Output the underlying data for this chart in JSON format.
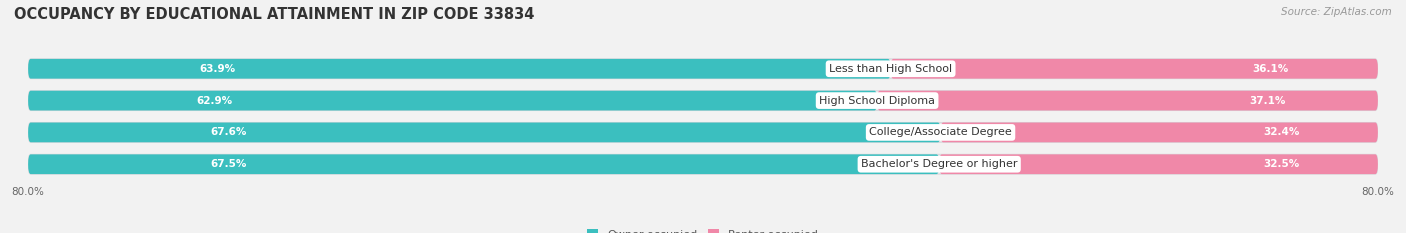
{
  "title": "OCCUPANCY BY EDUCATIONAL ATTAINMENT IN ZIP CODE 33834",
  "source": "Source: ZipAtlas.com",
  "categories": [
    "Less than High School",
    "High School Diploma",
    "College/Associate Degree",
    "Bachelor's Degree or higher"
  ],
  "owner_values": [
    63.9,
    62.9,
    67.6,
    67.5
  ],
  "renter_values": [
    36.1,
    37.1,
    32.4,
    32.5
  ],
  "owner_color": "#3bbfbf",
  "renter_color": "#f088a8",
  "bg_bar_color": "#e8e8ea",
  "bar_bg_edge_color": "#d8d8dc",
  "xlim_left": -80.0,
  "xlim_right": 80.0,
  "title_fontsize": 10.5,
  "source_fontsize": 7.5,
  "label_fontsize": 8,
  "value_fontsize": 7.5,
  "tick_fontsize": 7.5,
  "legend_fontsize": 8
}
